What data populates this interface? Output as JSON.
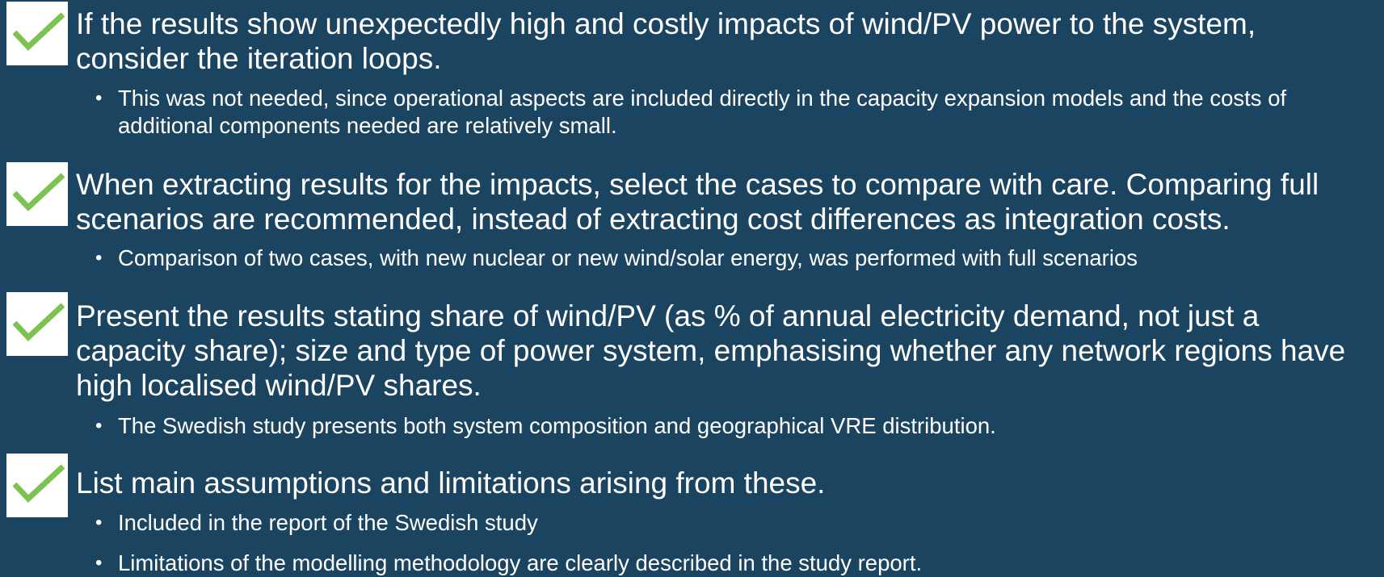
{
  "items": [
    {
      "heading": "If the results show unexpectedly high and costly impacts of wind/PV power to the system, consider the iteration loops.",
      "bullets": [
        "This was not needed, since operational aspects are included directly in the capacity expansion models and the costs of additional components needed are relatively small."
      ]
    },
    {
      "heading": "When extracting results for the impacts, select the cases to compare with care. Comparing full scenarios are recommended, instead of extracting cost differences as integration costs.",
      "bullets": [
        "Comparison of two cases, with new nuclear or new wind/solar energy, was performed with full scenarios"
      ]
    },
    {
      "heading": "Present the results stating share of wind/PV (as % of annual electricity demand, not just a capacity share); size and type of power system, emphasising whether any network regions have high localised wind/PV shares.",
      "bullets": [
        "The Swedish study presents both system composition and geographical VRE distribution."
      ]
    },
    {
      "heading": "List main assumptions and limitations arising from these.",
      "bullets": [
        "Included in the report of the Swedish study",
        "Limitations of the modelling methodology are clearly described in the study report."
      ]
    }
  ]
}
